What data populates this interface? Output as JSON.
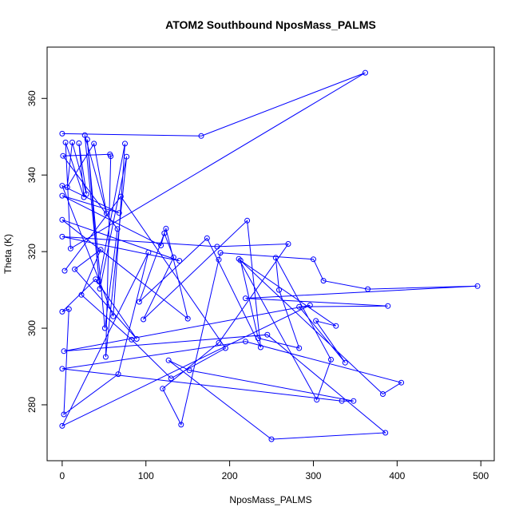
{
  "chart_data": {
    "type": "line",
    "title": "ATOM2 Southbound NposMass_PALMS",
    "xlabel": "NposMass_PALMS",
    "ylabel": "Theta (K)",
    "xlim": [
      -18,
      516
    ],
    "ylim": [
      265.4,
      373.4
    ],
    "xticks": [
      0,
      100,
      200,
      300,
      400,
      500
    ],
    "yticks": [
      280,
      300,
      320,
      340,
      360
    ],
    "grid": false,
    "legend": "none",
    "series_color": "#0000ff",
    "markers": "open-circle",
    "points": [
      [
        0,
        350.8
      ],
      [
        166,
        350.2
      ],
      [
        362,
        366.7
      ],
      [
        10,
        320.8
      ],
      [
        4,
        348.5
      ],
      [
        26,
        334.2
      ],
      [
        20,
        348.3
      ],
      [
        29,
        335.0
      ],
      [
        12,
        348.5
      ],
      [
        6,
        336.8
      ],
      [
        38,
        348.2
      ],
      [
        53,
        330.0
      ],
      [
        27,
        350.4
      ],
      [
        45,
        310.3
      ],
      [
        77,
        344.8
      ],
      [
        52,
        292.5
      ],
      [
        58,
        344.9
      ],
      [
        57,
        345.4
      ],
      [
        1,
        345.0
      ],
      [
        66,
        325.9
      ],
      [
        51,
        300.0
      ],
      [
        30,
        349.3
      ],
      [
        44,
        312.2
      ],
      [
        75,
        348.2
      ],
      [
        61,
        303.1
      ],
      [
        0,
        337.2
      ],
      [
        68,
        330.1
      ],
      [
        0,
        334.6
      ],
      [
        118,
        321.6
      ],
      [
        122,
        324.8
      ],
      [
        133,
        318.5
      ],
      [
        97,
        302.3
      ],
      [
        221,
        328.1
      ],
      [
        237,
        295.0
      ],
      [
        173,
        323.5
      ],
      [
        92,
        306.9
      ],
      [
        124,
        326.0
      ],
      [
        150,
        302.5
      ],
      [
        0,
        328.3
      ],
      [
        140,
        317.6
      ],
      [
        0,
        323.9
      ],
      [
        185,
        321.3
      ],
      [
        270,
        322.0
      ],
      [
        187,
        296.2
      ],
      [
        120,
        284.2
      ],
      [
        142,
        274.8
      ],
      [
        187,
        317.9
      ],
      [
        189,
        319.7
      ],
      [
        300,
        318.0
      ],
      [
        312,
        312.4
      ],
      [
        365,
        310.2
      ],
      [
        496,
        311.0
      ],
      [
        219,
        307.8
      ],
      [
        389,
        305.8
      ],
      [
        283,
        305.6
      ],
      [
        338,
        291.0
      ],
      [
        303,
        301.9
      ],
      [
        327,
        300.6
      ],
      [
        213,
        317.7
      ],
      [
        234,
        297.4
      ],
      [
        283,
        294.8
      ],
      [
        259,
        310.0
      ],
      [
        255,
        318.4
      ],
      [
        321,
        291.8
      ],
      [
        304,
        281.3
      ],
      [
        211,
        318.1
      ],
      [
        383,
        282.8
      ],
      [
        405,
        285.8
      ],
      [
        219,
        296.5
      ],
      [
        0,
        289.4
      ],
      [
        334,
        281.0
      ],
      [
        348,
        281.0
      ],
      [
        152,
        289.0
      ],
      [
        127,
        291.6
      ],
      [
        250,
        271.0
      ],
      [
        386,
        272.7
      ],
      [
        245,
        298.3
      ],
      [
        2,
        294.0
      ],
      [
        296,
        306.0
      ],
      [
        0,
        274.5
      ],
      [
        103,
        319.8
      ],
      [
        67,
        288.0
      ],
      [
        2,
        277.5
      ],
      [
        8,
        305.0
      ],
      [
        0,
        304.3
      ],
      [
        40,
        312.8
      ],
      [
        89,
        297.2
      ],
      [
        15,
        315.4
      ],
      [
        46,
        320.5
      ],
      [
        23,
        308.7
      ],
      [
        83,
        297.0
      ],
      [
        130,
        286.9
      ],
      [
        195,
        294.8
      ],
      [
        70,
        334.4
      ],
      [
        3,
        315.0
      ]
    ]
  }
}
